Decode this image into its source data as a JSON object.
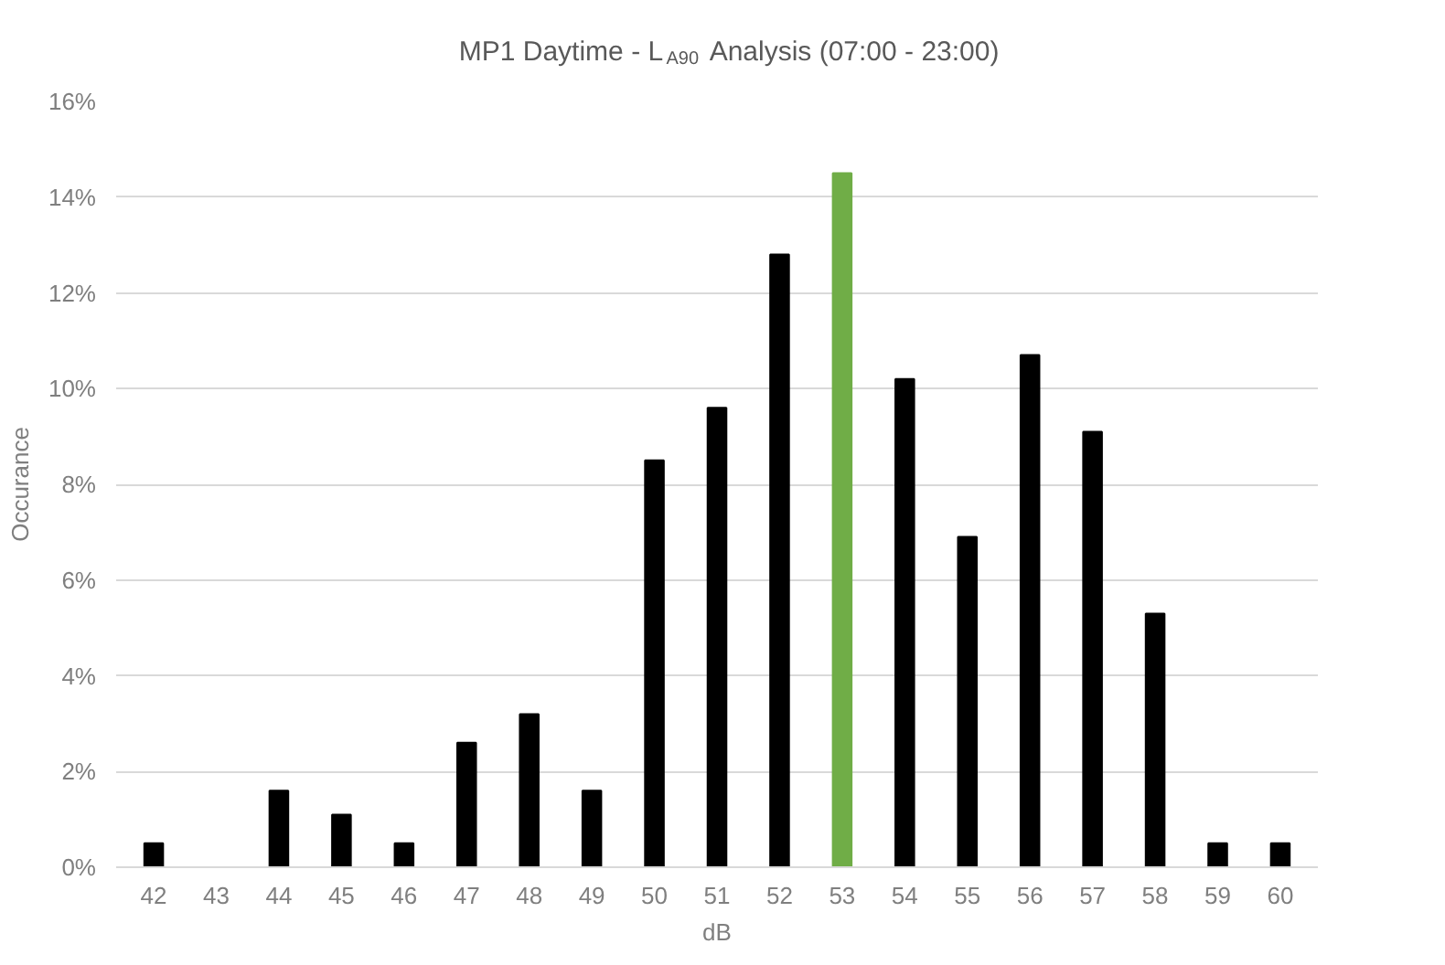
{
  "chart_data": {
    "type": "bar",
    "title": "MP1 Daytime - L$_{A90}$ Analysis (07:00 - 23:00)",
    "xlabel": "dB",
    "ylabel": "Occurance",
    "categories": [
      "42",
      "43",
      "44",
      "45",
      "46",
      "47",
      "48",
      "49",
      "50",
      "51",
      "52",
      "53",
      "54",
      "55",
      "56",
      "57",
      "58",
      "59",
      "60"
    ],
    "values": [
      0.5,
      0,
      1.6,
      1.1,
      0.5,
      2.6,
      3.2,
      1.6,
      8.5,
      9.6,
      12.8,
      14.5,
      10.2,
      6.9,
      10.7,
      9.1,
      5.3,
      0.5,
      0.5
    ],
    "colors": [
      "#000000",
      "#000000",
      "#000000",
      "#000000",
      "#000000",
      "#000000",
      "#000000",
      "#000000",
      "#000000",
      "#000000",
      "#000000",
      "#70ad47",
      "#000000",
      "#000000",
      "#000000",
      "#000000",
      "#000000",
      "#000000",
      "#000000"
    ],
    "ylim": [
      0,
      16
    ],
    "yticks": [
      {
        "value": 0,
        "label": "0%"
      },
      {
        "value": 2,
        "label": "2%"
      },
      {
        "value": 4,
        "label": "4%"
      },
      {
        "value": 6,
        "label": "6%"
      },
      {
        "value": 8,
        "label": "8%"
      },
      {
        "value": 10,
        "label": "10%"
      },
      {
        "value": 12,
        "label": "12%"
      },
      {
        "value": 14,
        "label": "14%"
      },
      {
        "value": 16,
        "label": "16%"
      }
    ],
    "grid": "y"
  }
}
